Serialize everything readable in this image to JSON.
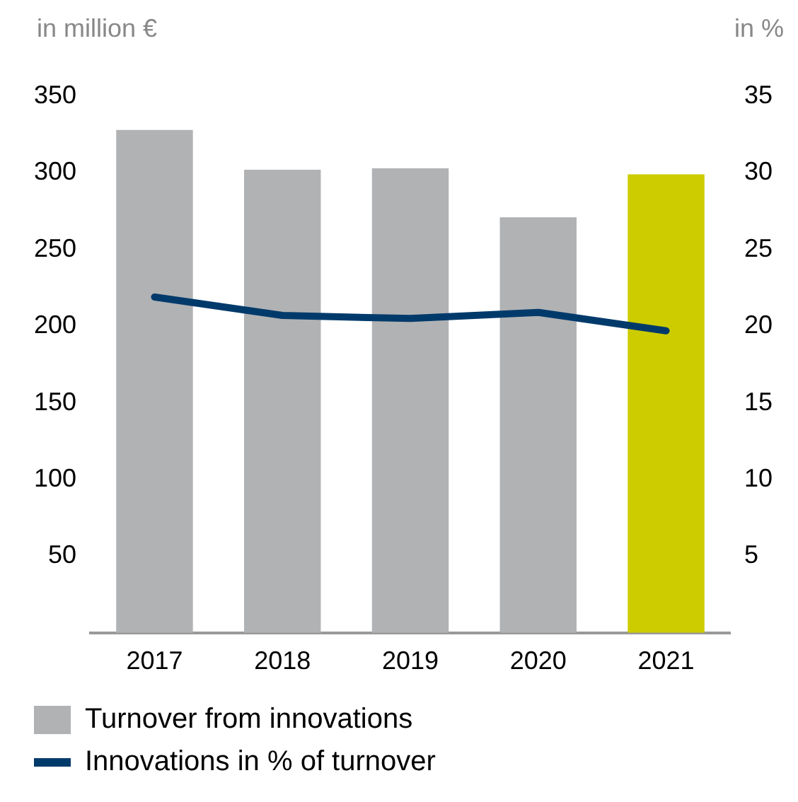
{
  "chart_data": {
    "type": "bar",
    "ylabel": "in million €",
    "y2label": "in %",
    "categories": [
      "2017",
      "2018",
      "2019",
      "2020",
      "2021"
    ],
    "series": [
      {
        "name": "Turnover from innovations",
        "color": "#b1b2b4",
        "colors": [
          "#b1b2b4",
          "#b1b2b4",
          "#b1b2b4",
          "#b1b2b4",
          "#cccc00"
        ],
        "values": [
          328,
          302,
          303,
          271,
          299
        ]
      },
      {
        "name": "Innovations in % of turnover",
        "type": "line",
        "axis": "y2",
        "color": "#003a6b",
        "values": [
          21.9,
          20.7,
          20.5,
          20.9,
          19.7
        ]
      }
    ],
    "ylim": [
      0,
      350
    ],
    "yticks": [
      50,
      100,
      150,
      200,
      250,
      300,
      350
    ],
    "y2lim": [
      0,
      35
    ],
    "y2ticks": [
      5,
      10,
      15,
      20,
      25,
      30,
      35
    ],
    "grid": false,
    "legend": "bottom",
    "marker": "none"
  }
}
